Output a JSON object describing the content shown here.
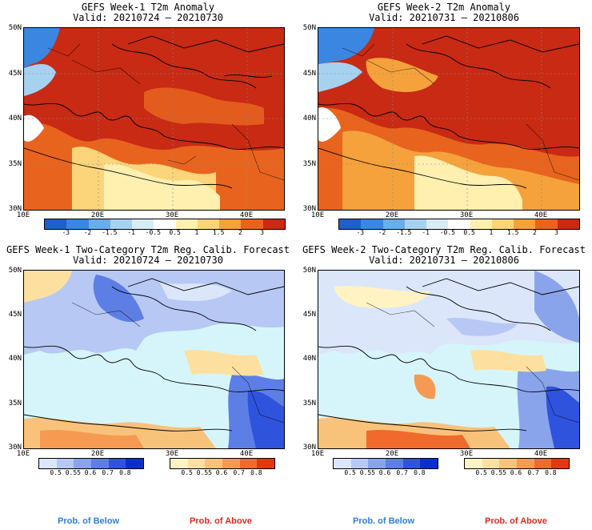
{
  "panels": [
    {
      "title": "GEFS Week-1 T2m Anomaly",
      "valid": "Valid: 20210724 – 20210730"
    },
    {
      "title": "GEFS Week-2 T2m Anomaly",
      "valid": "Valid: 20210731 – 20210806"
    },
    {
      "title": "GEFS Week-1 Two-Category T2m Reg. Calib. Forecast",
      "valid": "Valid: 20210724 – 20210730"
    },
    {
      "title": "GEFS Week-2 Two-Category T2m Reg. Calib. Forecast",
      "valid": "Valid: 20210731 – 20210806"
    }
  ],
  "lat_ticks": [
    "50N",
    "45N",
    "40N",
    "35N",
    "30N"
  ],
  "lon_ticks": [
    "10E",
    "20E",
    "30E",
    "40E"
  ],
  "anomaly_scale": {
    "labels": [
      "-3",
      "-2",
      "-1.5",
      "-1",
      "-0.5",
      "0.5",
      "1",
      "1.5",
      "2",
      "3"
    ],
    "colors": [
      "#1f5fc8",
      "#3a86e0",
      "#6aaee8",
      "#a6d2f0",
      "#d8ecf8",
      "#ffffff",
      "#fff0b0",
      "#fcd47a",
      "#f5a23c",
      "#e8641e",
      "#c82a14"
    ]
  },
  "prob_below_scale": {
    "labels": [
      "0.5",
      "0.55",
      "0.6",
      "0.7",
      "0.8"
    ],
    "colors": [
      "#dbe6fb",
      "#b7c8f4",
      "#8aa4ec",
      "#5d7ee4",
      "#2f53dd",
      "#0a2ed6"
    ]
  },
  "prob_above_scale": {
    "labels": [
      "0.5",
      "0.55",
      "0.6",
      "0.7",
      "0.8"
    ],
    "colors": [
      "#fff3c4",
      "#fde0a0",
      "#f9c27a",
      "#f59a52",
      "#ef6a2c",
      "#e8350f"
    ]
  },
  "captions": {
    "below": "Prob. of Below",
    "above": "Prob. of Above"
  },
  "colors": {
    "sea_prob": "#d6f5fa",
    "caption_below": "#2f7fd8",
    "caption_above": "#e32b1f"
  }
}
